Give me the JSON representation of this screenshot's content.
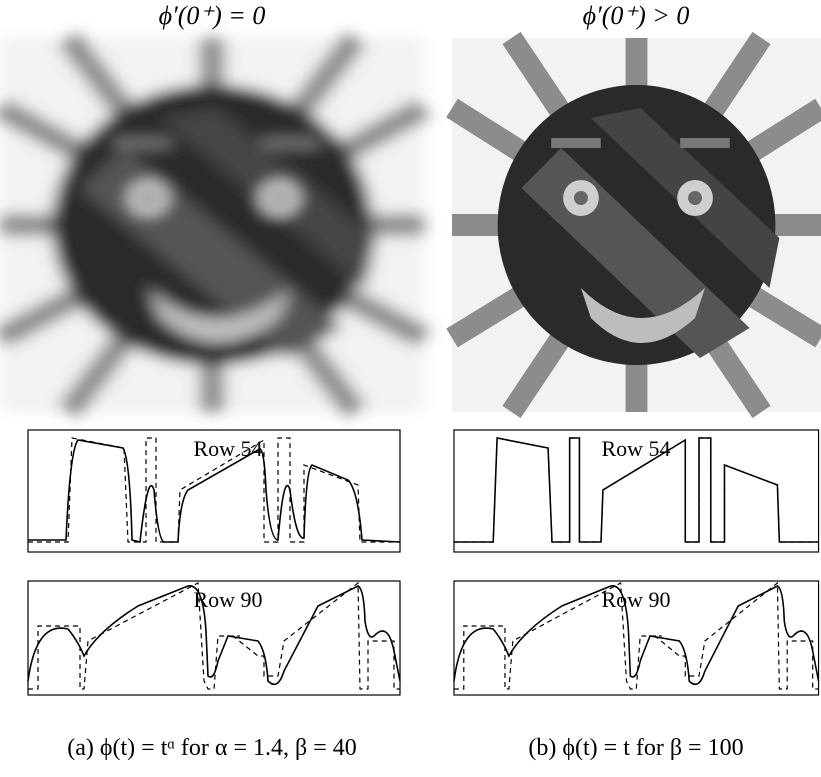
{
  "panels": [
    {
      "title": "ϕ′(0⁺) = 0",
      "rows": [
        "Row 54",
        "Row 90"
      ],
      "caption": "(a) ϕ(t) = tᵅ for α = 1.4, β = 40"
    },
    {
      "title": "ϕ′(0⁺) > 0",
      "rows": [
        "Row 54",
        "Row 90"
      ],
      "caption": "(b) ϕ(t) = t for β = 100"
    }
  ]
}
